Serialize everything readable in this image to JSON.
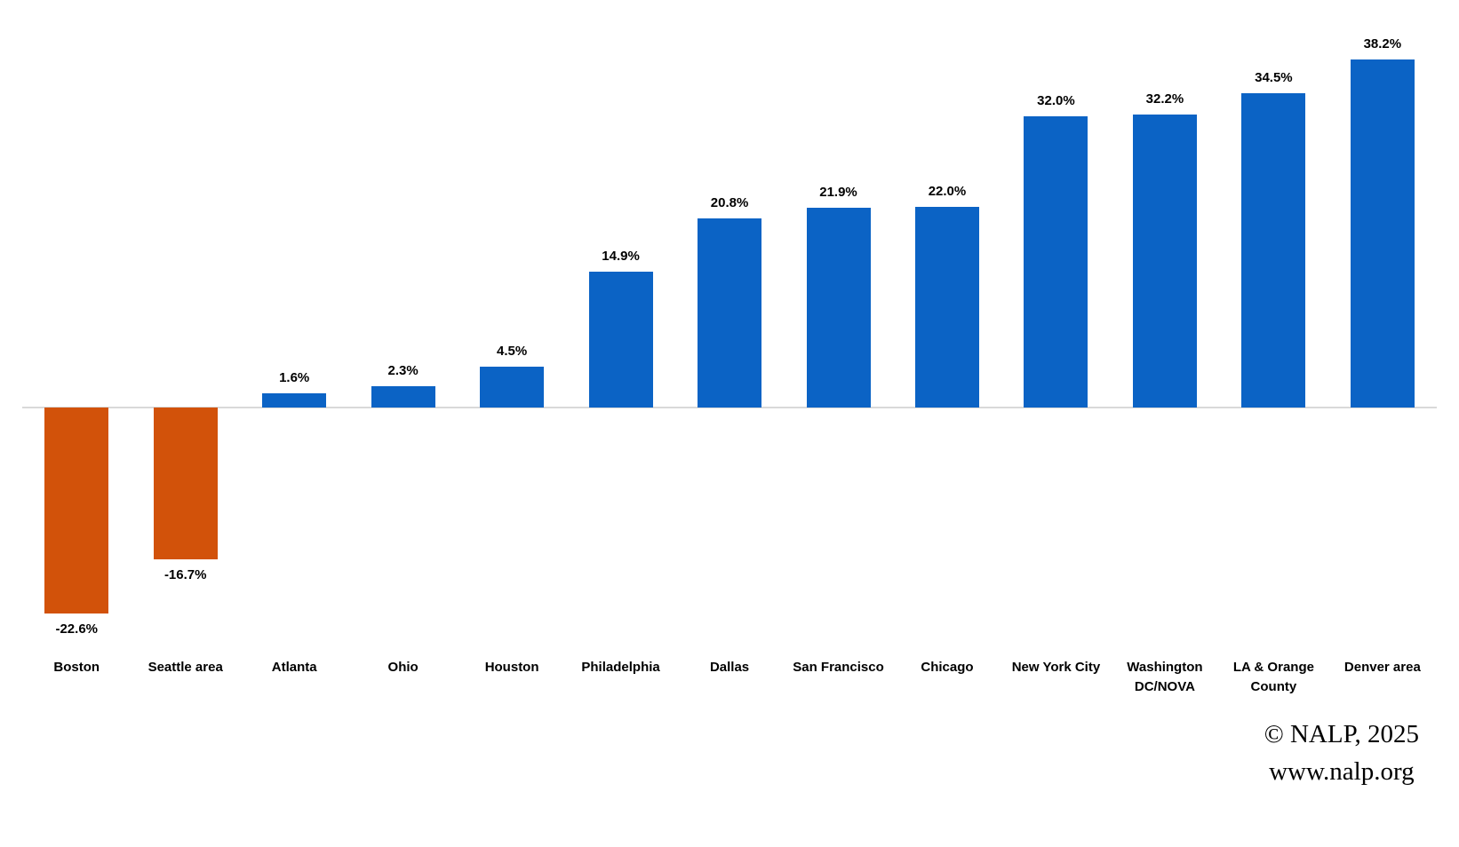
{
  "chart_data": {
    "type": "bar",
    "title": "",
    "xlabel": "",
    "ylabel": "",
    "ylim": [
      -25,
      40
    ],
    "grid": false,
    "legend": "none",
    "unit": "%",
    "categories": [
      "Boston",
      "Seattle area",
      "Atlanta",
      "Ohio",
      "Houston",
      "Philadelphia",
      "Dallas",
      "San Francisco",
      "Chicago",
      "New York City",
      "Washington DC/NOVA",
      "LA & Orange County",
      "Denver area"
    ],
    "values": [
      -22.6,
      -16.7,
      1.6,
      2.3,
      4.5,
      14.9,
      20.8,
      21.9,
      22.0,
      32.0,
      32.2,
      34.5,
      38.2
    ],
    "value_labels": [
      "-22.6%",
      "-16.7%",
      "1.6%",
      "2.3%",
      "4.5%",
      "14.9%",
      "20.8%",
      "21.9%",
      "22.0%",
      "32.0%",
      "32.2%",
      "34.5%",
      "38.2%"
    ],
    "positive_bar_color": "#0b63c5",
    "negative_bar_color": "#d2520a",
    "baseline_color": "#d9d9d9"
  },
  "attribution": {
    "line1": "© NALP, 2025",
    "line2": "www.nalp.org"
  }
}
